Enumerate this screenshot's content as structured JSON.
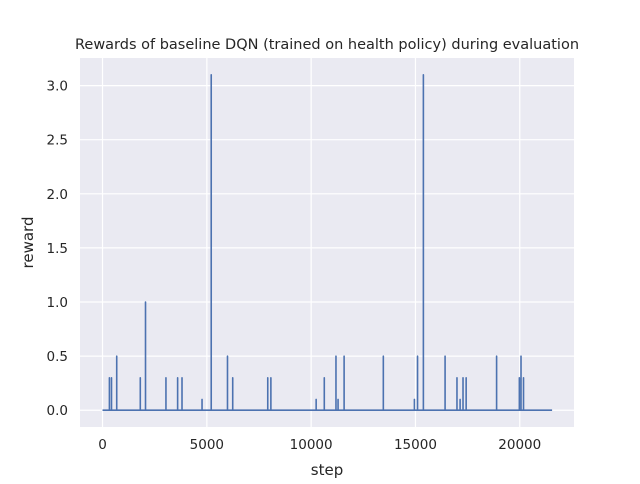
{
  "chart_data": {
    "type": "line",
    "title": "Rewards of baseline DQN (trained on health policy) during evaluation",
    "xlabel": "step",
    "ylabel": "reward",
    "xlim": [
      -1080,
      22600
    ],
    "ylim": [
      -0.155,
      3.255
    ],
    "xticks": [
      0,
      5000,
      10000,
      15000,
      20000
    ],
    "yticks": [
      0.0,
      0.5,
      1.0,
      1.5,
      2.0,
      2.5,
      3.0
    ],
    "xtick_labels": [
      "0",
      "5000",
      "10000",
      "15000",
      "20000"
    ],
    "ytick_labels": [
      "0.0",
      "0.5",
      "1.0",
      "1.5",
      "2.0",
      "2.5",
      "3.0"
    ],
    "grid": true,
    "colors": {
      "line": "#4c72b0",
      "plot_background": "#eaeaf2",
      "grid": "#ffffff"
    },
    "x_start": 0,
    "x_end": 21550,
    "baseline": 0.0,
    "spikes": [
      {
        "x": 330,
        "y": 0.3
      },
      {
        "x": 430,
        "y": 0.3
      },
      {
        "x": 680,
        "y": 0.5
      },
      {
        "x": 1810,
        "y": 0.3
      },
      {
        "x": 2060,
        "y": 1.0
      },
      {
        "x": 3040,
        "y": 0.3
      },
      {
        "x": 3600,
        "y": 0.3
      },
      {
        "x": 3810,
        "y": 0.3
      },
      {
        "x": 4770,
        "y": 0.1
      },
      {
        "x": 5210,
        "y": 3.1
      },
      {
        "x": 5990,
        "y": 0.5
      },
      {
        "x": 6240,
        "y": 0.3
      },
      {
        "x": 7920,
        "y": 0.3
      },
      {
        "x": 8070,
        "y": 0.3
      },
      {
        "x": 10240,
        "y": 0.1
      },
      {
        "x": 10630,
        "y": 0.3
      },
      {
        "x": 11190,
        "y": 0.5
      },
      {
        "x": 11290,
        "y": 0.1
      },
      {
        "x": 11580,
        "y": 0.5
      },
      {
        "x": 13460,
        "y": 0.5
      },
      {
        "x": 14950,
        "y": 0.1
      },
      {
        "x": 15100,
        "y": 0.5
      },
      {
        "x": 15380,
        "y": 3.1
      },
      {
        "x": 16420,
        "y": 0.5
      },
      {
        "x": 16990,
        "y": 0.3
      },
      {
        "x": 17140,
        "y": 0.1
      },
      {
        "x": 17280,
        "y": 0.3
      },
      {
        "x": 17430,
        "y": 0.3
      },
      {
        "x": 18890,
        "y": 0.5
      },
      {
        "x": 19980,
        "y": 0.3
      },
      {
        "x": 20060,
        "y": 0.5
      },
      {
        "x": 20180,
        "y": 0.3
      }
    ]
  }
}
